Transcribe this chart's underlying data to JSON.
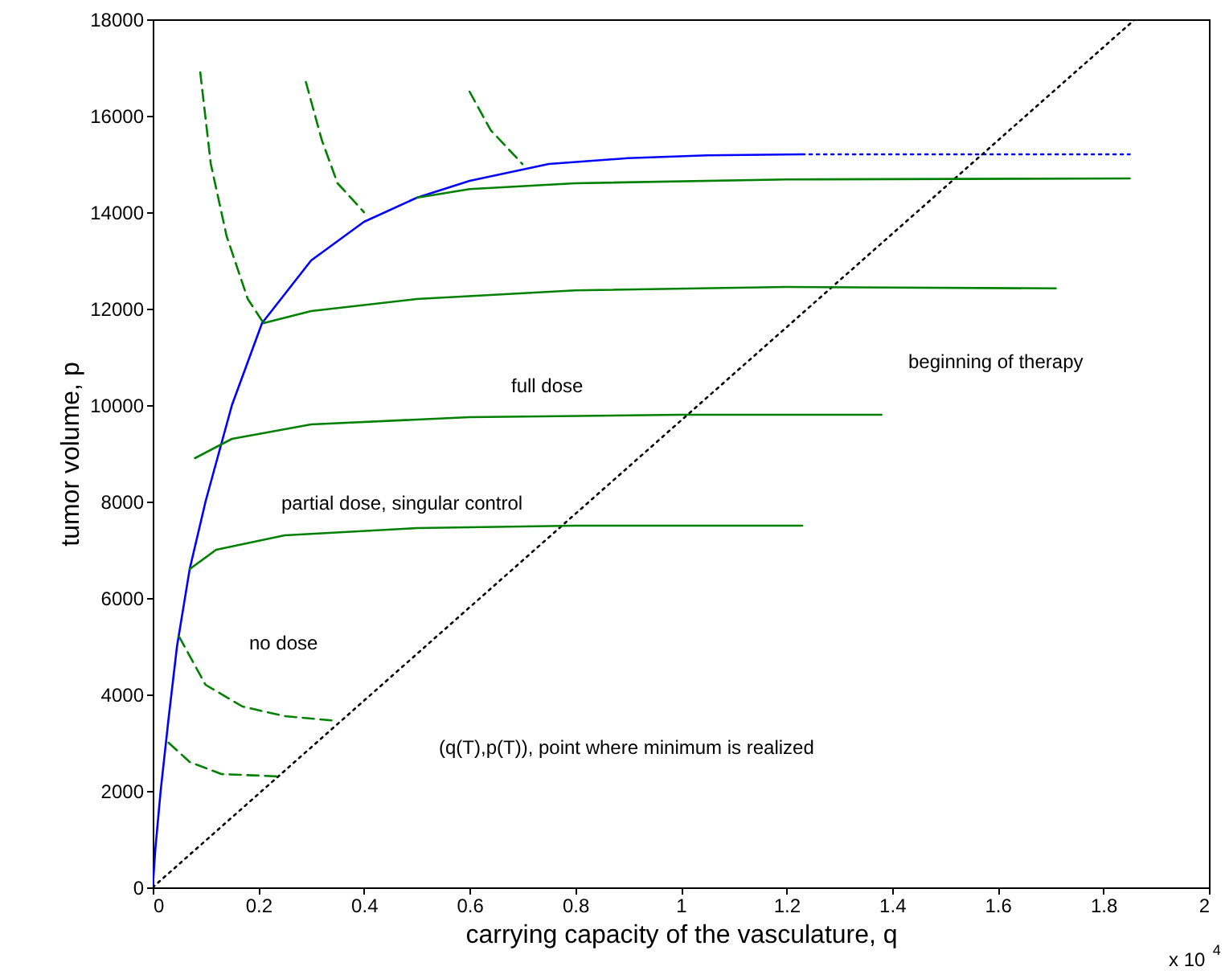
{
  "chart_data": {
    "type": "line",
    "xlabel": "carrying capacity of the vasculature, q",
    "ylabel": "tumor volume, p",
    "xlim": [
      0,
      2
    ],
    "xticks": [
      0,
      0.2,
      0.4,
      0.6,
      0.8,
      1,
      1.2,
      1.4,
      1.6,
      1.8,
      2
    ],
    "ylim": [
      0,
      18000
    ],
    "yticks": [
      0,
      2000,
      4000,
      6000,
      8000,
      10000,
      12000,
      14000,
      16000,
      18000
    ],
    "grid": false,
    "annotations": [
      "full dose",
      "beginning of therapy",
      "partial dose, singular control",
      "no dose",
      "(q(T),p(T)), point where minimum is realized",
      "x 10$^{4}$"
    ],
    "series": [
      {
        "color": "#0000ff",
        "line_style": "solid",
        "x": [
          0,
          0.005,
          0.015,
          0.03,
          0.046,
          0.07,
          0.1,
          0.15,
          0.207,
          0.3,
          0.4,
          0.5,
          0.6,
          0.75,
          0.9,
          1.05,
          1.23
        ],
        "values": [
          0,
          800,
          2000,
          3500,
          5000,
          6600,
          8000,
          10000,
          11700,
          13000,
          13800,
          14300,
          14650,
          15000,
          15120,
          15180,
          15200
        ]
      },
      {
        "color": "#0000ff",
        "line_style": "dotted",
        "x": [
          1.23,
          1.85
        ],
        "values": [
          15200,
          15200
        ]
      },
      {
        "color": "#000000",
        "line_style": "dotted",
        "x": [
          0,
          1.86
        ],
        "values": [
          0,
          18000
        ]
      },
      {
        "color": "#008000",
        "line_style": "solid",
        "x": [
          1.85,
          1.2,
          0.8,
          0.6,
          0.5
        ],
        "values": [
          14700,
          14680,
          14600,
          14480,
          14300
        ]
      },
      {
        "color": "#008000",
        "line_style": "solid",
        "x": [
          1.71,
          1.2,
          0.8,
          0.5,
          0.3,
          0.21
        ],
        "values": [
          12420,
          12450,
          12380,
          12200,
          11950,
          11700
        ]
      },
      {
        "color": "#008000",
        "line_style": "solid",
        "x": [
          1.38,
          1.0,
          0.6,
          0.3,
          0.15,
          0.08
        ],
        "values": [
          9800,
          9800,
          9750,
          9600,
          9300,
          8900
        ]
      },
      {
        "color": "#008000",
        "line_style": "solid",
        "x": [
          1.23,
          0.8,
          0.5,
          0.25,
          0.12,
          0.07
        ],
        "values": [
          7500,
          7500,
          7450,
          7300,
          7000,
          6600
        ]
      },
      {
        "color": "#008000",
        "line_style": "dashed",
        "x": [
          0.05,
          0.1,
          0.17,
          0.25,
          0.35
        ],
        "values": [
          5200,
          4200,
          3750,
          3550,
          3450
        ]
      },
      {
        "color": "#008000",
        "line_style": "dashed",
        "x": [
          0.03,
          0.07,
          0.13,
          0.24
        ],
        "values": [
          3000,
          2600,
          2350,
          2300
        ]
      },
      {
        "color": "#008000",
        "line_style": "dashed",
        "x": [
          0.09,
          0.11,
          0.14,
          0.18,
          0.21
        ],
        "values": [
          16900,
          15000,
          13500,
          12200,
          11700
        ]
      },
      {
        "color": "#008000",
        "line_style": "dashed",
        "x": [
          0.29,
          0.32,
          0.35,
          0.4
        ],
        "values": [
          16700,
          15500,
          14600,
          14000
        ]
      },
      {
        "color": "#008000",
        "line_style": "dashed",
        "x": [
          0.6,
          0.64,
          0.7
        ],
        "values": [
          16500,
          15700,
          15000
        ]
      }
    ]
  }
}
